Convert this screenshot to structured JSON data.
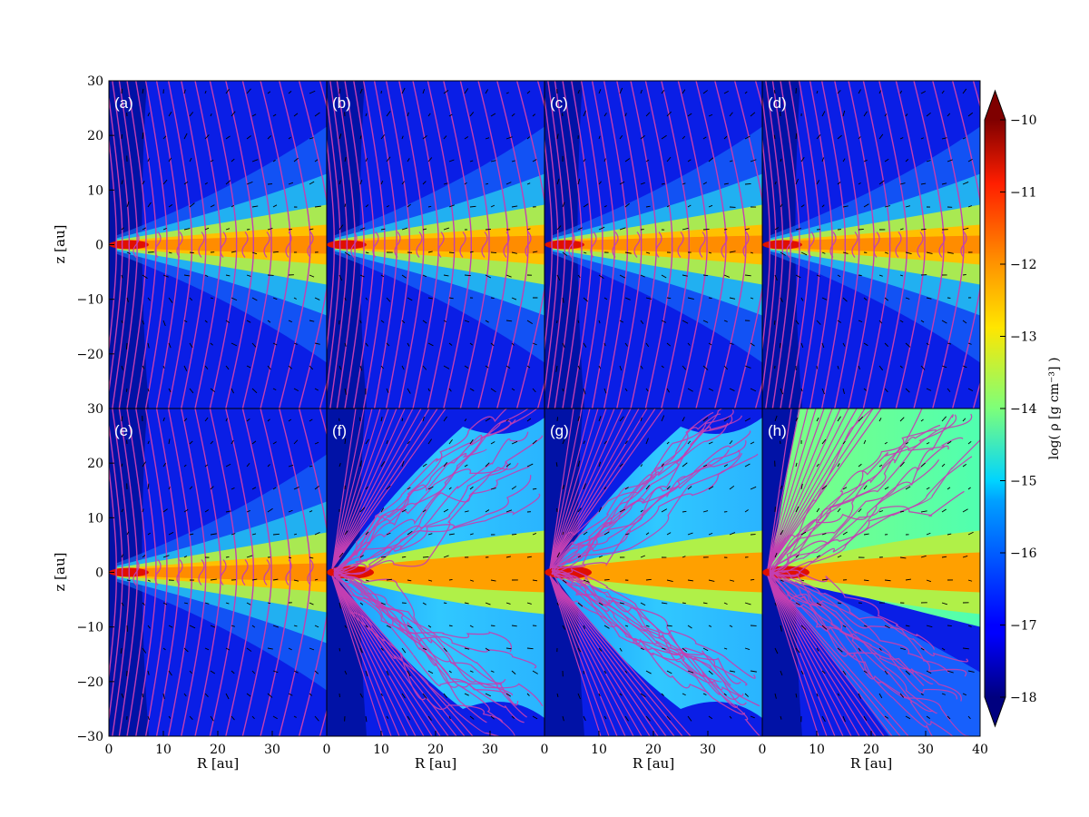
{
  "chart_data": {
    "type": "heatmap",
    "title": "",
    "colormap": "jet",
    "xlabel": "R [au]",
    "ylabel": "z [au]",
    "x_ticks_all": [
      "0",
      "10",
      "20",
      "30"
    ],
    "x_ticks_last": [
      "0",
      "10",
      "20",
      "30",
      "40"
    ],
    "y_ticks_top": [
      "30",
      "20",
      "10",
      "0",
      "−10",
      "−20"
    ],
    "y_ticks_bottom": [
      "30",
      "20",
      "10",
      "0",
      "−10",
      "−20",
      "−30"
    ],
    "xlim": [
      0,
      40
    ],
    "ylim": [
      -30,
      30
    ],
    "panels": [
      {
        "label": "(a)",
        "row": 0,
        "col": 0,
        "state": "thin disk"
      },
      {
        "label": "(b)",
        "row": 0,
        "col": 1,
        "state": "thin disk"
      },
      {
        "label": "(c)",
        "row": 0,
        "col": 2,
        "state": "thin disk"
      },
      {
        "label": "(d)",
        "row": 0,
        "col": 3,
        "state": "thin disk"
      },
      {
        "label": "(e)",
        "row": 1,
        "col": 0,
        "state": "thin disk"
      },
      {
        "label": "(f)",
        "row": 1,
        "col": 1,
        "state": "turbulent outflow"
      },
      {
        "label": "(g)",
        "row": 1,
        "col": 2,
        "state": "turbulent outflow"
      },
      {
        "label": "(h)",
        "row": 1,
        "col": 3,
        "state": "dense turbulent outflow"
      }
    ],
    "colorbar": {
      "label": "log( ρ [g cm⁻³] )",
      "min": -18,
      "max": -10,
      "ticks": [
        "−10",
        "−11",
        "−12",
        "−13",
        "−14",
        "−15",
        "−16",
        "−17",
        "−18"
      ],
      "extend": "both"
    },
    "overlays": {
      "field_lines_color": "#c33fb2",
      "vector_color": "#000000"
    }
  }
}
